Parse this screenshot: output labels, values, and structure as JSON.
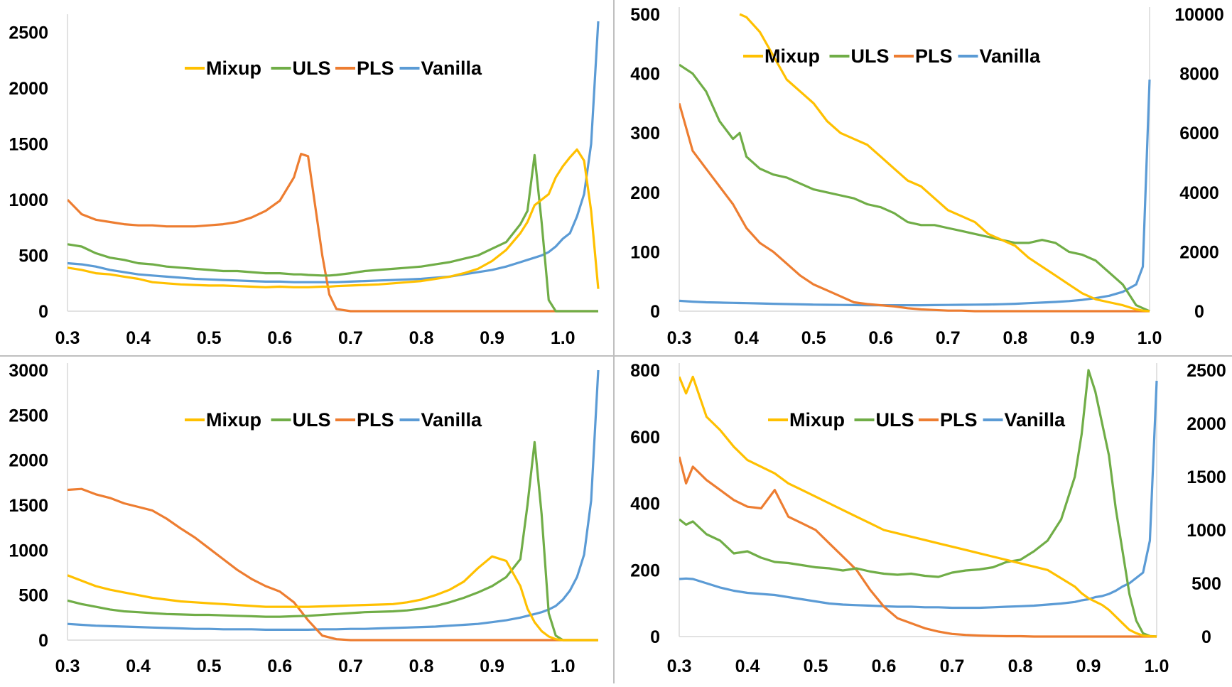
{
  "chart_data": [
    {
      "type": "line",
      "panel": "top-left",
      "title": "",
      "xlabel": "",
      "ylabel": "",
      "legend_position": "top-center",
      "xlim": [
        0.3,
        1.05
      ],
      "ylim": [
        0,
        2600
      ],
      "x_ticks": [
        "0.3",
        "0.4",
        "0.5",
        "0.6",
        "0.7",
        "0.8",
        "0.9",
        "1.0"
      ],
      "y_ticks": [
        "0",
        "500",
        "1000",
        "1500",
        "2000",
        "2500"
      ],
      "x": [
        0.3,
        0.32,
        0.34,
        0.36,
        0.38,
        0.4,
        0.42,
        0.44,
        0.46,
        0.48,
        0.5,
        0.52,
        0.54,
        0.56,
        0.58,
        0.6,
        0.62,
        0.63,
        0.64,
        0.66,
        0.67,
        0.68,
        0.7,
        0.72,
        0.74,
        0.76,
        0.78,
        0.8,
        0.82,
        0.84,
        0.86,
        0.88,
        0.9,
        0.92,
        0.94,
        0.95,
        0.96,
        0.97,
        0.98,
        0.99,
        1.0,
        1.01,
        1.02,
        1.03,
        1.04,
        1.05
      ],
      "series": [
        {
          "name": "Mixup",
          "color": "#FFC000",
          "values": [
            390,
            370,
            340,
            330,
            310,
            290,
            260,
            250,
            240,
            235,
            230,
            230,
            225,
            220,
            215,
            220,
            215,
            215,
            215,
            220,
            220,
            225,
            230,
            235,
            240,
            250,
            260,
            270,
            290,
            310,
            340,
            380,
            450,
            550,
            700,
            800,
            950,
            1000,
            1050,
            1200,
            1300,
            1380,
            1450,
            1350,
            900,
            200
          ]
        },
        {
          "name": "ULS",
          "color": "#70AD47",
          "values": [
            600,
            580,
            520,
            480,
            460,
            430,
            420,
            400,
            390,
            380,
            370,
            360,
            360,
            350,
            340,
            340,
            330,
            330,
            325,
            320,
            320,
            325,
            340,
            360,
            370,
            380,
            390,
            400,
            420,
            440,
            470,
            500,
            560,
            620,
            780,
            900,
            1400,
            800,
            100,
            0,
            0,
            0,
            0,
            0,
            0,
            0
          ]
        },
        {
          "name": "PLS",
          "color": "#ED7D31",
          "values": [
            1000,
            870,
            820,
            800,
            780,
            770,
            770,
            760,
            760,
            760,
            770,
            780,
            800,
            840,
            900,
            990,
            1200,
            1410,
            1390,
            500,
            150,
            20,
            0,
            0,
            0,
            0,
            0,
            0,
            0,
            0,
            0,
            0,
            0,
            0,
            0,
            0,
            0,
            0,
            0,
            0,
            0,
            0,
            0,
            0,
            0,
            0
          ]
        },
        {
          "name": "Vanilla",
          "color": "#5B9BD5",
          "values": [
            430,
            420,
            400,
            370,
            350,
            330,
            320,
            310,
            300,
            290,
            285,
            280,
            275,
            270,
            265,
            265,
            260,
            260,
            260,
            260,
            260,
            260,
            265,
            270,
            275,
            280,
            285,
            290,
            300,
            310,
            330,
            350,
            370,
            400,
            440,
            460,
            480,
            500,
            530,
            580,
            650,
            700,
            850,
            1050,
            1500,
            2600
          ]
        }
      ]
    },
    {
      "type": "line",
      "panel": "top-right",
      "title": "",
      "xlabel": "",
      "ylabel": "",
      "legend_position": "top-center",
      "xlim": [
        0.3,
        1.0
      ],
      "ylim": [
        0,
        500
      ],
      "y2lim": [
        0,
        10000
      ],
      "x_ticks": [
        "0.3",
        "0.4",
        "0.5",
        "0.6",
        "0.7",
        "0.8",
        "0.9",
        "1.0"
      ],
      "y_ticks": [
        "0",
        "100",
        "200",
        "300",
        "400",
        "500"
      ],
      "y2_ticks": [
        "0",
        "2000",
        "4000",
        "6000",
        "8000",
        "10000"
      ],
      "x": [
        0.3,
        0.32,
        0.34,
        0.36,
        0.38,
        0.39,
        0.4,
        0.42,
        0.44,
        0.46,
        0.48,
        0.5,
        0.52,
        0.54,
        0.56,
        0.58,
        0.6,
        0.62,
        0.64,
        0.66,
        0.68,
        0.7,
        0.72,
        0.74,
        0.76,
        0.78,
        0.8,
        0.82,
        0.84,
        0.86,
        0.88,
        0.9,
        0.92,
        0.94,
        0.96,
        0.98,
        0.99,
        1.0
      ],
      "series": [
        {
          "name": "Mixup",
          "color": "#FFC000",
          "axis": "left",
          "values": [
            null,
            null,
            null,
            null,
            null,
            500,
            495,
            470,
            430,
            390,
            370,
            350,
            320,
            300,
            290,
            280,
            260,
            240,
            220,
            210,
            190,
            170,
            160,
            150,
            130,
            120,
            110,
            90,
            75,
            60,
            45,
            30,
            20,
            15,
            10,
            3,
            1,
            0
          ]
        },
        {
          "name": "ULS",
          "color": "#70AD47",
          "axis": "left",
          "values": [
            415,
            400,
            370,
            320,
            290,
            300,
            260,
            240,
            230,
            225,
            215,
            205,
            200,
            195,
            190,
            180,
            175,
            165,
            150,
            145,
            145,
            140,
            135,
            130,
            125,
            120,
            115,
            115,
            120,
            115,
            100,
            95,
            85,
            65,
            45,
            10,
            5,
            0
          ]
        },
        {
          "name": "PLS",
          "color": "#ED7D31",
          "axis": "left",
          "values": [
            350,
            270,
            240,
            210,
            180,
            160,
            140,
            115,
            100,
            80,
            60,
            45,
            35,
            25,
            15,
            12,
            10,
            8,
            5,
            3,
            2,
            1,
            1,
            0,
            0,
            0,
            0,
            0,
            0,
            0,
            0,
            0,
            0,
            0,
            0,
            0,
            0,
            0
          ]
        },
        {
          "name": "Vanilla",
          "color": "#5B9BD5",
          "axis": "right",
          "values": [
            350,
            320,
            300,
            290,
            280,
            275,
            270,
            260,
            250,
            240,
            230,
            220,
            215,
            210,
            205,
            200,
            200,
            200,
            200,
            200,
            205,
            210,
            215,
            220,
            225,
            235,
            250,
            270,
            290,
            310,
            340,
            380,
            440,
            520,
            650,
            900,
            1500,
            7800
          ]
        }
      ]
    },
    {
      "type": "line",
      "panel": "bottom-left",
      "title": "",
      "xlabel": "",
      "ylabel": "",
      "legend_position": "top-center",
      "xlim": [
        0.3,
        1.05
      ],
      "ylim": [
        0,
        3000
      ],
      "x_ticks": [
        "0.3",
        "0.4",
        "0.5",
        "0.6",
        "0.7",
        "0.8",
        "0.9",
        "1.0"
      ],
      "y_ticks": [
        "0",
        "500",
        "1000",
        "1500",
        "2000",
        "2500",
        "3000"
      ],
      "x": [
        0.3,
        0.32,
        0.34,
        0.36,
        0.38,
        0.4,
        0.42,
        0.44,
        0.46,
        0.48,
        0.5,
        0.52,
        0.54,
        0.56,
        0.58,
        0.6,
        0.62,
        0.64,
        0.66,
        0.68,
        0.7,
        0.72,
        0.74,
        0.76,
        0.78,
        0.8,
        0.82,
        0.84,
        0.86,
        0.88,
        0.9,
        0.92,
        0.94,
        0.95,
        0.96,
        0.97,
        0.98,
        0.99,
        1.0,
        1.01,
        1.02,
        1.03,
        1.04,
        1.05
      ],
      "series": [
        {
          "name": "Mixup",
          "color": "#FFC000",
          "values": [
            720,
            660,
            600,
            560,
            530,
            500,
            470,
            450,
            430,
            420,
            410,
            400,
            390,
            380,
            370,
            370,
            370,
            370,
            375,
            380,
            385,
            390,
            395,
            400,
            420,
            450,
            500,
            560,
            650,
            800,
            930,
            880,
            600,
            350,
            200,
            100,
            40,
            10,
            0,
            0,
            0,
            0,
            0,
            0
          ]
        },
        {
          "name": "ULS",
          "color": "#70AD47",
          "values": [
            440,
            400,
            370,
            340,
            320,
            310,
            300,
            290,
            285,
            280,
            280,
            275,
            270,
            265,
            260,
            260,
            265,
            270,
            280,
            290,
            300,
            310,
            315,
            320,
            330,
            350,
            380,
            420,
            470,
            530,
            600,
            700,
            900,
            1500,
            2200,
            1400,
            300,
            50,
            0,
            0,
            0,
            0,
            0,
            0
          ]
        },
        {
          "name": "PLS",
          "color": "#ED7D31",
          "values": [
            1670,
            1680,
            1620,
            1580,
            1520,
            1480,
            1440,
            1350,
            1240,
            1140,
            1020,
            900,
            780,
            680,
            600,
            540,
            420,
            220,
            50,
            10,
            0,
            0,
            0,
            0,
            0,
            0,
            0,
            0,
            0,
            0,
            0,
            0,
            0,
            0,
            0,
            0,
            0,
            0,
            0,
            0,
            0,
            0,
            0,
            0
          ]
        },
        {
          "name": "Vanilla",
          "color": "#5B9BD5",
          "values": [
            180,
            170,
            160,
            155,
            150,
            145,
            140,
            135,
            130,
            125,
            125,
            120,
            120,
            120,
            115,
            115,
            115,
            115,
            120,
            120,
            125,
            125,
            130,
            135,
            140,
            145,
            150,
            160,
            170,
            180,
            200,
            220,
            250,
            270,
            290,
            310,
            340,
            380,
            450,
            550,
            700,
            950,
            1550,
            3000
          ]
        }
      ]
    },
    {
      "type": "line",
      "panel": "bottom-right",
      "title": "",
      "xlabel": "",
      "ylabel": "",
      "legend_position": "top-center",
      "xlim": [
        0.3,
        1.0
      ],
      "ylim": [
        0,
        800
      ],
      "y2lim": [
        0,
        2500
      ],
      "x_ticks": [
        "0.3",
        "0.4",
        "0.5",
        "0.6",
        "0.7",
        "0.8",
        "0.9",
        "1.0"
      ],
      "y_ticks": [
        "0",
        "200",
        "400",
        "600",
        "800"
      ],
      "y2_ticks": [
        "0",
        "500",
        "1000",
        "1500",
        "2000",
        "2500"
      ],
      "x": [
        0.3,
        0.31,
        0.32,
        0.34,
        0.36,
        0.38,
        0.4,
        0.42,
        0.44,
        0.46,
        0.48,
        0.5,
        0.52,
        0.54,
        0.56,
        0.58,
        0.6,
        0.62,
        0.64,
        0.66,
        0.68,
        0.7,
        0.72,
        0.74,
        0.76,
        0.78,
        0.8,
        0.82,
        0.84,
        0.86,
        0.88,
        0.89,
        0.9,
        0.91,
        0.92,
        0.93,
        0.94,
        0.95,
        0.96,
        0.97,
        0.98,
        0.99,
        1.0
      ],
      "series": [
        {
          "name": "Mixup",
          "color": "#FFC000",
          "axis": "left",
          "values": [
            780,
            730,
            780,
            660,
            620,
            570,
            530,
            510,
            490,
            460,
            440,
            420,
            400,
            380,
            360,
            340,
            320,
            310,
            300,
            290,
            280,
            270,
            260,
            250,
            240,
            230,
            220,
            210,
            200,
            175,
            150,
            130,
            115,
            105,
            95,
            80,
            60,
            40,
            20,
            10,
            3,
            1,
            0
          ]
        },
        {
          "name": "ULS",
          "color": "#70AD47",
          "axis": "right",
          "values": [
            1100,
            1050,
            1080,
            960,
            900,
            780,
            800,
            740,
            700,
            690,
            670,
            650,
            640,
            620,
            640,
            610,
            590,
            580,
            590,
            570,
            560,
            600,
            620,
            630,
            650,
            700,
            720,
            800,
            900,
            1100,
            1500,
            1900,
            2500,
            2300,
            2000,
            1700,
            1200,
            800,
            400,
            150,
            30,
            5,
            0
          ]
        },
        {
          "name": "PLS",
          "color": "#ED7D31",
          "axis": "left",
          "values": [
            540,
            460,
            510,
            470,
            440,
            410,
            390,
            385,
            440,
            360,
            340,
            320,
            280,
            240,
            200,
            140,
            90,
            55,
            40,
            25,
            15,
            8,
            5,
            3,
            2,
            1,
            1,
            0,
            0,
            0,
            0,
            0,
            0,
            0,
            0,
            0,
            0,
            0,
            0,
            0,
            0,
            0,
            0
          ]
        },
        {
          "name": "Vanilla",
          "color": "#5B9BD5",
          "axis": "right",
          "values": [
            540,
            545,
            540,
            500,
            460,
            430,
            410,
            400,
            390,
            370,
            350,
            330,
            310,
            300,
            295,
            290,
            285,
            280,
            280,
            275,
            275,
            270,
            270,
            270,
            275,
            280,
            285,
            290,
            300,
            310,
            325,
            340,
            350,
            370,
            380,
            400,
            430,
            470,
            500,
            550,
            600,
            900,
            2400
          ]
        }
      ]
    }
  ]
}
